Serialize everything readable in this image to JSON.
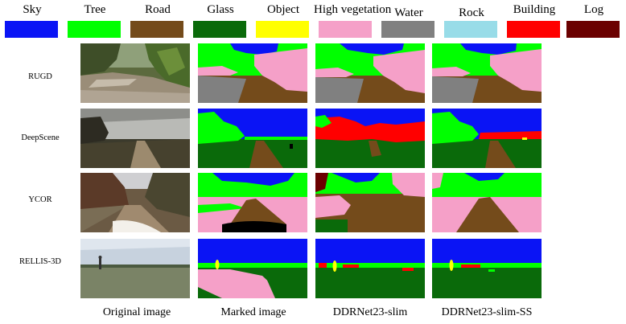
{
  "legend": [
    {
      "label": "Sky",
      "color": "#0a14f5"
    },
    {
      "label": "Tree",
      "color": "#00ff00"
    },
    {
      "label": "Road",
      "color": "#744b1b"
    },
    {
      "label": "Glass",
      "color": "#0a6a0a"
    },
    {
      "label": "Object",
      "color": "#ffff00"
    },
    {
      "label": "High vegetation",
      "color": "#f5a0c8"
    },
    {
      "label": "Water",
      "color": "#808080"
    },
    {
      "label": "Rock",
      "color": "#98dce8"
    },
    {
      "label": "Building",
      "color": "#ff0000"
    },
    {
      "label": "Log",
      "color": "#6b0000"
    }
  ],
  "rows": [
    {
      "label": "RUGD"
    },
    {
      "label": "DeepScene"
    },
    {
      "label": "YCOR"
    },
    {
      "label": "RELLIS-3D"
    }
  ],
  "columns": [
    {
      "label": "Original image"
    },
    {
      "label": "Marked image"
    },
    {
      "label": "DDRNet23-slim"
    },
    {
      "label": "DDRNet23-slim-SS"
    }
  ]
}
